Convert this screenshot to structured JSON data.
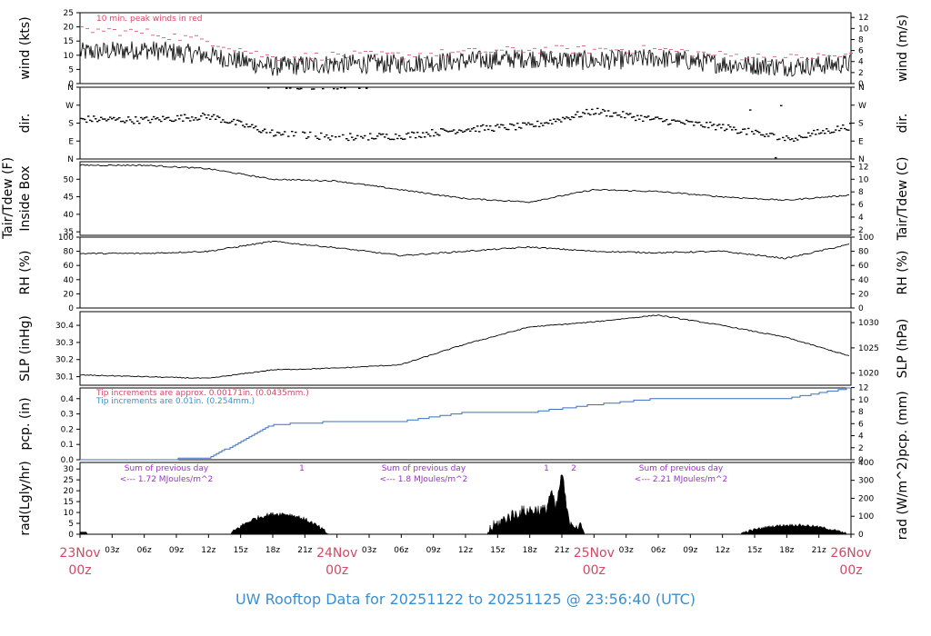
{
  "title": "UW Rooftop Data for 20251122  to  20251125 @ 23:56:40  (UTC)",
  "x_axis": {
    "hour_labels": [
      "03z",
      "06z",
      "09z",
      "12z",
      "15z",
      "18z",
      "21z",
      "03z",
      "06z",
      "09z",
      "12z",
      "15z",
      "18z",
      "21z",
      "03z",
      "06z",
      "09z",
      "12z",
      "15z",
      "18z",
      "21z"
    ],
    "day_labels": [
      {
        "date": "23Nov",
        "time": "00z"
      },
      {
        "date": "24Nov",
        "time": "00z"
      },
      {
        "date": "25Nov",
        "time": "00z"
      },
      {
        "date": "26Nov",
        "time": "00z"
      }
    ]
  },
  "colors": {
    "peak": "#d04a66",
    "note_red": "#d04a66",
    "note_blue": "#3a8fd0",
    "pcp_line": "#3a6fc0",
    "purple": "#9b30d0",
    "title": "#3a8fd0"
  },
  "panels": {
    "wind": {
      "ylabel_left": "wind (kts)",
      "ylabel_right": "wind (m/s)",
      "ticks_left": [
        "0",
        "5",
        "10",
        "15",
        "20",
        "25"
      ],
      "ticks_right": [
        "0",
        "2",
        "4",
        "6",
        "8",
        "10",
        "12"
      ],
      "note": "10 min. peak winds in red"
    },
    "dir": {
      "ylabel_left": "dir.",
      "ylabel_right": "dir.",
      "ticks": [
        "N",
        "E",
        "S",
        "W",
        "N"
      ]
    },
    "temp": {
      "ylabel_left_1": "Tair/Tdew (F)",
      "ylabel_left_2": "Inside Box",
      "ylabel_right": "Tair/Tdew (C)",
      "ticks_left": [
        "35",
        "40",
        "45",
        "50"
      ],
      "ticks_right": [
        "2",
        "4",
        "6",
        "8",
        "10",
        "12"
      ]
    },
    "rh": {
      "ylabel_left": "RH (%)",
      "ylabel_right": "RH (%)",
      "ticks": [
        "0",
        "20",
        "40",
        "60",
        "80",
        "100"
      ]
    },
    "slp": {
      "ylabel_left": "SLP (inHg)",
      "ylabel_right": "SLP (hPa)",
      "ticks_left": [
        "30.1",
        "30.2",
        "30.3",
        "30.4"
      ],
      "ticks_right": [
        "1020",
        "1025",
        "1030"
      ]
    },
    "pcp": {
      "ylabel_left": "pcp. (in)",
      "ylabel_right": "pcp. (mm)",
      "ticks_left": [
        "0.0",
        "0.1",
        "0.2",
        "0.3",
        "0.4"
      ],
      "ticks_right": [
        "0",
        "2",
        "4",
        "6",
        "8",
        "10",
        "12"
      ],
      "note_red": "Tip increments are approx. 0.00171in. (0.0435mm.)",
      "note_blue": "Tip increments are 0.01in. (0.254mm.)"
    },
    "rad": {
      "ylabel_left": "rad(Lgly/hr)",
      "ylabel_right": "rad (W/m^2)",
      "ticks_left": [
        "0",
        "5",
        "10",
        "15",
        "20",
        "25",
        "30"
      ],
      "ticks_right": [
        "0",
        "100",
        "200",
        "300",
        "400"
      ],
      "sums": [
        {
          "line1": "Sum of previous day",
          "line2": "<--- 1.72 MJoules/m^2"
        },
        {
          "line1": "Sum of previous day",
          "line2": "<--- 1.8 MJoules/m^2"
        },
        {
          "line1": "Sum of previous day",
          "line2": "<--- 2.21 MJoules/m^2"
        }
      ],
      "markers": [
        "1",
        "1",
        "2"
      ]
    }
  },
  "chart_data": [
    {
      "type": "line",
      "ylabel": "wind (kts)",
      "ylim": [
        0,
        25
      ],
      "x": [
        "23Nov 00z",
        "23Nov 06z",
        "23Nov 12z",
        "23Nov 18z",
        "24Nov 00z",
        "24Nov 06z",
        "24Nov 12z",
        "24Nov 18z",
        "25Nov 00z",
        "25Nov 06z",
        "25Nov 12z",
        "25Nov 18z",
        "26Nov 00z"
      ],
      "series": [
        {
          "values": [
            11,
            12,
            10,
            6,
            7,
            7,
            8,
            9,
            8,
            9,
            7,
            6,
            7
          ]
        },
        {
          "name": "10 min. peak winds",
          "values": [
            19,
            18,
            15,
            9,
            10,
            10,
            11,
            12,
            12,
            12,
            10,
            9,
            10
          ]
        }
      ]
    },
    {
      "type": "scatter",
      "ylabel": "dir.",
      "y_ticks": [
        "N",
        "E",
        "S",
        "W",
        "N"
      ],
      "x": [
        "23Nov 00z",
        "23Nov 06z",
        "23Nov 12z",
        "23Nov 18z",
        "24Nov 00z",
        "24Nov 06z",
        "24Nov 12z",
        "24Nov 18z",
        "25Nov 00z",
        "25Nov 06z",
        "25Nov 12z",
        "25Nov 18z",
        "26Nov 00z"
      ],
      "values_deg": [
        200,
        195,
        215,
        130,
        110,
        115,
        150,
        165,
        240,
        195,
        160,
        100,
        165
      ]
    },
    {
      "type": "line",
      "ylabel": "Tair/Tdew (F)",
      "ylim": [
        34,
        55
      ],
      "x": [
        "23Nov 00z",
        "23Nov 06z",
        "23Nov 12z",
        "23Nov 18z",
        "24Nov 00z",
        "24Nov 06z",
        "24Nov 12z",
        "24Nov 18z",
        "25Nov 00z",
        "25Nov 06z",
        "25Nov 12z",
        "25Nov 18z",
        "26Nov 00z"
      ],
      "values": [
        54,
        54,
        53,
        50,
        49.5,
        47,
        44.5,
        43.5,
        47,
        46.5,
        45,
        44,
        45.5
      ]
    },
    {
      "type": "line",
      "ylabel": "RH (%)",
      "ylim": [
        0,
        100
      ],
      "x": [
        "23Nov 00z",
        "23Nov 06z",
        "23Nov 12z",
        "23Nov 18z",
        "24Nov 00z",
        "24Nov 06z",
        "24Nov 12z",
        "24Nov 18z",
        "25Nov 00z",
        "25Nov 06z",
        "25Nov 12z",
        "25Nov 18z",
        "26Nov 00z"
      ],
      "values": [
        77,
        77,
        80,
        94,
        85,
        74,
        80,
        86,
        80,
        78,
        80,
        70,
        90
      ]
    },
    {
      "type": "line",
      "ylabel": "SLP (inHg)",
      "ylim": [
        30.05,
        30.48
      ],
      "x": [
        "23Nov 00z",
        "23Nov 06z",
        "23Nov 12z",
        "23Nov 18z",
        "24Nov 00z",
        "24Nov 06z",
        "24Nov 12z",
        "24Nov 18z",
        "25Nov 00z",
        "25Nov 06z",
        "25Nov 12z",
        "25Nov 18z",
        "26Nov 00z"
      ],
      "values": [
        30.11,
        30.1,
        30.09,
        30.14,
        30.15,
        30.17,
        30.29,
        30.39,
        30.42,
        30.46,
        30.4,
        30.33,
        30.22
      ]
    },
    {
      "type": "line",
      "ylabel": "pcp. (in)",
      "ylim": [
        0,
        0.47
      ],
      "x": [
        "23Nov 00z",
        "23Nov 06z",
        "23Nov 12z",
        "23Nov 18z",
        "24Nov 00z",
        "24Nov 06z",
        "24Nov 12z",
        "24Nov 18z",
        "25Nov 00z",
        "25Nov 06z",
        "25Nov 12z",
        "25Nov 18z",
        "26Nov 00z"
      ],
      "values": [
        0,
        0,
        0.01,
        0.23,
        0.25,
        0.25,
        0.31,
        0.31,
        0.36,
        0.4,
        0.4,
        0.4,
        0.47
      ]
    },
    {
      "type": "area",
      "ylabel": "rad(Lgly/hr)",
      "ylim": [
        0,
        33
      ],
      "x": [
        "23Nov 00z",
        "23Nov 06z",
        "23Nov 12z",
        "23Nov 18z",
        "24Nov 00z",
        "24Nov 06z",
        "24Nov 12z",
        "24Nov 18z",
        "25Nov 00z",
        "25Nov 06z",
        "25Nov 12z",
        "25Nov 18z",
        "26Nov 00z"
      ],
      "values": [
        0,
        0,
        0,
        5,
        0,
        0,
        0,
        6,
        0,
        0,
        0,
        4,
        0
      ]
    }
  ]
}
